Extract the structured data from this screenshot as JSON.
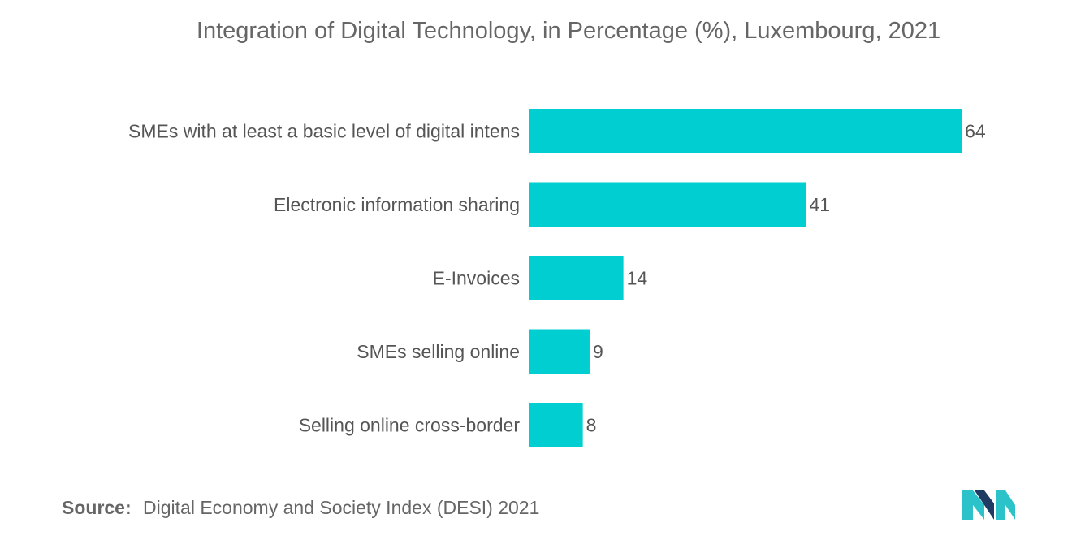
{
  "chart_data": {
    "type": "bar",
    "orientation": "horizontal",
    "title": "Integration of Digital Technology, in Percentage (%), Luxembourg, 2021",
    "categories": [
      "SMEs with at least a basic level of digital intens",
      "Electronic information sharing",
      "E-Invoices",
      "SMEs selling online",
      "Selling online cross-border"
    ],
    "values": [
      64,
      41,
      14,
      9,
      8
    ],
    "xlim": [
      0,
      70
    ],
    "grid": false,
    "bar_color": "#00CED1"
  },
  "source": {
    "label": "Source:",
    "text": "Digital Economy and Society Index (DESI) 2021"
  },
  "logo": {
    "icon": "mordor-intelligence-logo",
    "colors": [
      "#1F3B63",
      "#2BC2C9"
    ]
  }
}
